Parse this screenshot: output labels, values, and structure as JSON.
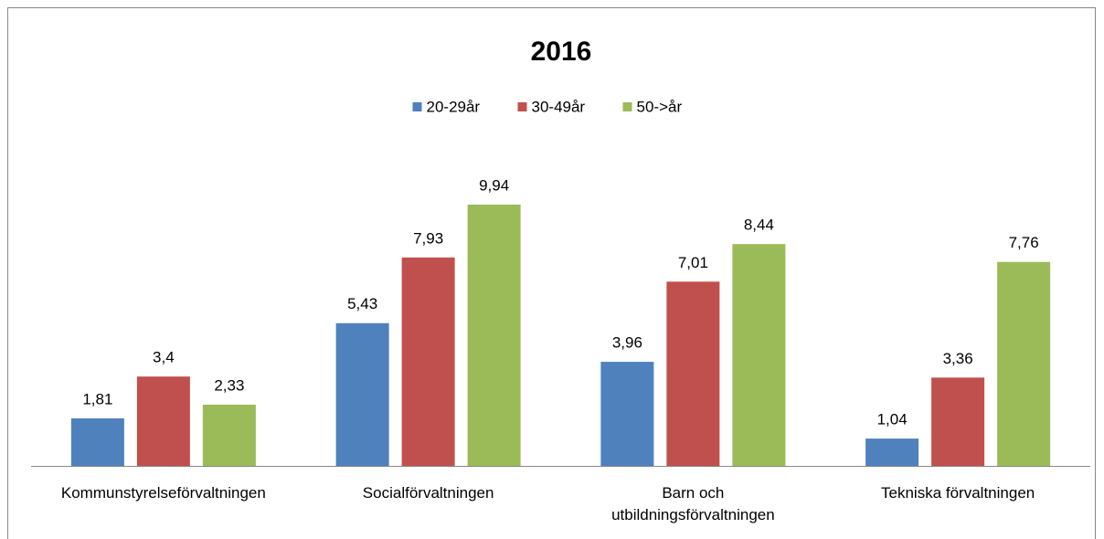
{
  "chart_data": {
    "type": "bar",
    "title": "2016",
    "categories": [
      "Kommunstyrelseförvaltningen",
      "Socialförvaltningen",
      "Barn och utbildningsförvaltningen",
      "Tekniska förvaltningen"
    ],
    "series": [
      {
        "name": "20-29år",
        "color": "#4f81bd",
        "values": [
          1.81,
          5.43,
          3.96,
          1.04
        ],
        "value_labels": [
          "1,81",
          "5,43",
          "3,96",
          "1,04"
        ]
      },
      {
        "name": "30-49år",
        "color": "#c0504d",
        "values": [
          3.4,
          7.93,
          7.01,
          3.36
        ],
        "value_labels": [
          "3,4",
          "7,93",
          "7,01",
          "3,36"
        ]
      },
      {
        "name": "50->år",
        "color": "#9bbb59",
        "values": [
          2.33,
          9.94,
          8.44,
          7.76
        ],
        "value_labels": [
          "2,33",
          "9,94",
          "8,44",
          "7,76"
        ]
      }
    ],
    "legend": "top"
  }
}
